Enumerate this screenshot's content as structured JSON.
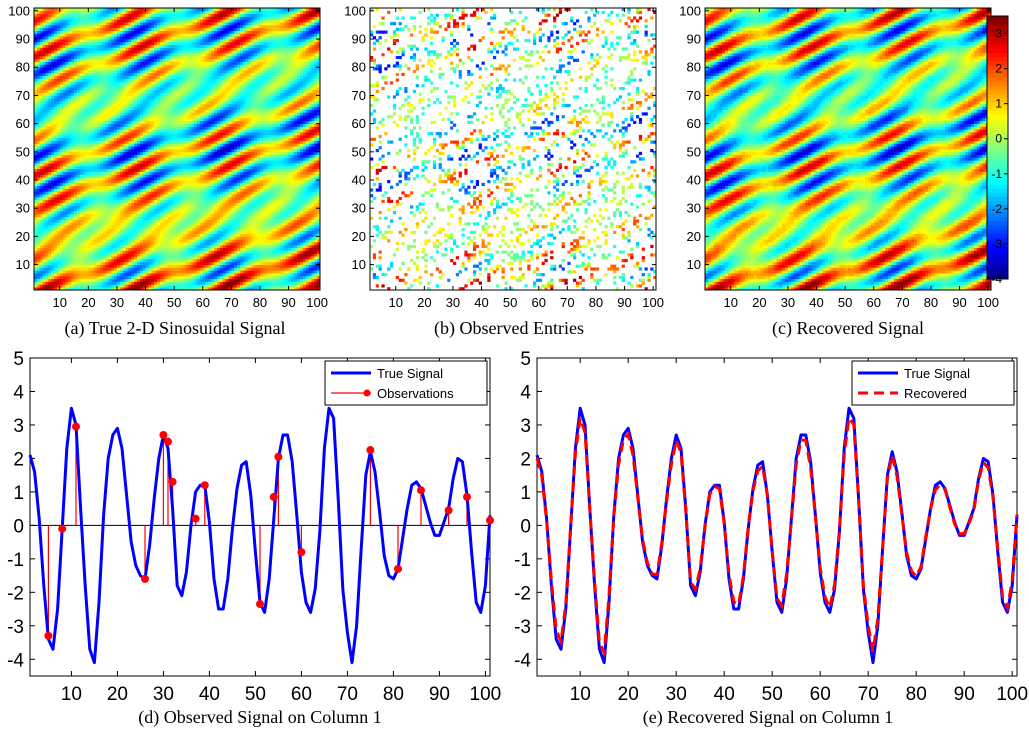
{
  "chart_data": [
    {
      "type": "heatmap",
      "caption": "(a)  True 2-D Sinosuidal Signal",
      "xlim": [
        1,
        101
      ],
      "ylim": [
        1,
        101
      ],
      "x_ticks": [
        10,
        20,
        30,
        40,
        50,
        60,
        70,
        80,
        90,
        100
      ],
      "y_ticks": [
        10,
        20,
        30,
        40,
        50,
        60,
        70,
        80,
        90,
        100
      ],
      "colormap": "jet",
      "clim": [
        -4,
        3.5
      ]
    },
    {
      "type": "heatmap",
      "caption": "(b)  Observed Entries",
      "xlim": [
        1,
        101
      ],
      "ylim": [
        1,
        101
      ],
      "x_ticks": [
        10,
        20,
        30,
        40,
        50,
        60,
        70,
        80,
        90,
        100
      ],
      "y_ticks": [
        10,
        20,
        30,
        40,
        50,
        60,
        70,
        80,
        90,
        100
      ],
      "colormap": "jet",
      "clim": [
        -4,
        3.5
      ],
      "observed_fraction": 0.2
    },
    {
      "type": "heatmap",
      "caption": "(c)  Recovered Signal",
      "xlim": [
        1,
        101
      ],
      "ylim": [
        1,
        101
      ],
      "x_ticks": [
        10,
        20,
        30,
        40,
        50,
        60,
        70,
        80,
        90,
        100
      ],
      "y_ticks": [
        10,
        20,
        30,
        40,
        50,
        60,
        70,
        80,
        90,
        100
      ],
      "colormap": "jet",
      "clim": [
        -4,
        3.5
      ],
      "colorbar_ticks": [
        3,
        2,
        1,
        0,
        -1,
        -2,
        -3,
        -4
      ]
    },
    {
      "type": "line",
      "caption": "(d)  Observed Signal on Column 1",
      "xlim": [
        1,
        101
      ],
      "ylim": [
        -4.5,
        5
      ],
      "x_ticks": [
        10,
        20,
        30,
        40,
        50,
        60,
        70,
        80,
        90,
        100
      ],
      "y_ticks": [
        5,
        4,
        3,
        2,
        1,
        0,
        -1,
        -2,
        -3,
        -4
      ],
      "legend": "top-right",
      "series": [
        {
          "name": "True Signal",
          "color": "#0000ff",
          "points": [
            [
              1,
              2.1
            ],
            [
              2,
              1.6
            ],
            [
              3,
              0.2
            ],
            [
              4,
              -1.8
            ],
            [
              5,
              -3.4
            ],
            [
              6,
              -3.7
            ],
            [
              7,
              -2.5
            ],
            [
              8,
              -0.1
            ],
            [
              9,
              2.3
            ],
            [
              10,
              3.5
            ],
            [
              11,
              3.0
            ],
            [
              12,
              0.5
            ],
            [
              13,
              -1.8
            ],
            [
              14,
              -3.7
            ],
            [
              15,
              -4.1
            ],
            [
              16,
              -2.3
            ],
            [
              17,
              0.3
            ],
            [
              18,
              2.0
            ],
            [
              19,
              2.7
            ],
            [
              20,
              2.9
            ],
            [
              21,
              2.3
            ],
            [
              22,
              0.9
            ],
            [
              23,
              -0.5
            ],
            [
              24,
              -1.2
            ],
            [
              25,
              -1.5
            ],
            [
              26,
              -1.6
            ],
            [
              27,
              -0.6
            ],
            [
              28,
              0.8
            ],
            [
              29,
              2.0
            ],
            [
              30,
              2.7
            ],
            [
              31,
              2.3
            ],
            [
              32,
              0.5
            ],
            [
              33,
              -1.8
            ],
            [
              34,
              -2.1
            ],
            [
              35,
              -1.4
            ],
            [
              36,
              0.0
            ],
            [
              37,
              1.0
            ],
            [
              38,
              1.2
            ],
            [
              39,
              1.2
            ],
            [
              40,
              0.1
            ],
            [
              41,
              -1.6
            ],
            [
              42,
              -2.5
            ],
            [
              43,
              -2.5
            ],
            [
              44,
              -1.6
            ],
            [
              45,
              -0.1
            ],
            [
              46,
              1.1
            ],
            [
              47,
              1.8
            ],
            [
              48,
              1.9
            ],
            [
              49,
              0.9
            ],
            [
              50,
              -0.8
            ],
            [
              51,
              -2.3
            ],
            [
              52,
              -2.6
            ],
            [
              53,
              -1.6
            ],
            [
              54,
              0.2
            ],
            [
              55,
              2.0
            ],
            [
              56,
              2.7
            ],
            [
              57,
              2.7
            ],
            [
              58,
              1.9
            ],
            [
              59,
              0.3
            ],
            [
              60,
              -1.4
            ],
            [
              61,
              -2.3
            ],
            [
              62,
              -2.6
            ],
            [
              63,
              -1.9
            ],
            [
              64,
              -0.2
            ],
            [
              65,
              2.3
            ],
            [
              66,
              3.5
            ],
            [
              67,
              3.2
            ],
            [
              68,
              0.8
            ],
            [
              69,
              -1.9
            ],
            [
              70,
              -3.2
            ],
            [
              71,
              -4.1
            ],
            [
              72,
              -3.0
            ],
            [
              73,
              -0.7
            ],
            [
              74,
              1.5
            ],
            [
              75,
              2.2
            ],
            [
              76,
              1.6
            ],
            [
              77,
              0.4
            ],
            [
              78,
              -0.9
            ],
            [
              79,
              -1.5
            ],
            [
              80,
              -1.6
            ],
            [
              81,
              -1.3
            ],
            [
              82,
              -0.4
            ],
            [
              83,
              0.5
            ],
            [
              84,
              1.2
            ],
            [
              85,
              1.3
            ],
            [
              86,
              1.1
            ],
            [
              87,
              0.6
            ],
            [
              88,
              0.1
            ],
            [
              89,
              -0.3
            ],
            [
              90,
              -0.3
            ],
            [
              91,
              0.1
            ],
            [
              92,
              0.5
            ],
            [
              93,
              1.4
            ],
            [
              94,
              2.0
            ],
            [
              95,
              1.9
            ],
            [
              96,
              0.9
            ],
            [
              97,
              -0.8
            ],
            [
              98,
              -2.3
            ],
            [
              99,
              -2.6
            ],
            [
              100,
              -1.8
            ],
            [
              101,
              0.3
            ]
          ]
        },
        {
          "name": "Observations",
          "color": "#ff0000",
          "style": "stem",
          "points": [
            [
              5,
              -3.3
            ],
            [
              8,
              -0.1
            ],
            [
              11,
              2.95
            ],
            [
              26,
              -1.6
            ],
            [
              30,
              2.7
            ],
            [
              31,
              2.5
            ],
            [
              32,
              1.3
            ],
            [
              37,
              0.2
            ],
            [
              39,
              1.2
            ],
            [
              51,
              -2.35
            ],
            [
              54,
              0.85
            ],
            [
              55,
              2.05
            ],
            [
              60,
              -0.8
            ],
            [
              75,
              2.25
            ],
            [
              81,
              -1.3
            ],
            [
              86,
              1.05
            ],
            [
              92,
              0.45
            ],
            [
              96,
              0.85
            ],
            [
              101,
              0.15
            ]
          ]
        }
      ]
    },
    {
      "type": "line",
      "caption": "(e)  Recovered Signal on Column 1",
      "xlim": [
        1,
        101
      ],
      "ylim": [
        -4.5,
        5
      ],
      "x_ticks": [
        10,
        20,
        30,
        40,
        50,
        60,
        70,
        80,
        90,
        100
      ],
      "y_ticks": [
        5,
        4,
        3,
        2,
        1,
        0,
        -1,
        -2,
        -3,
        -4
      ],
      "legend": "top-right",
      "series": [
        {
          "name": "True Signal",
          "color": "#0000ff",
          "same_as": "d.True Signal"
        },
        {
          "name": "Recovered",
          "color": "#ff0000",
          "style": "dashed",
          "offset_pattern": "near-identical"
        }
      ]
    }
  ]
}
